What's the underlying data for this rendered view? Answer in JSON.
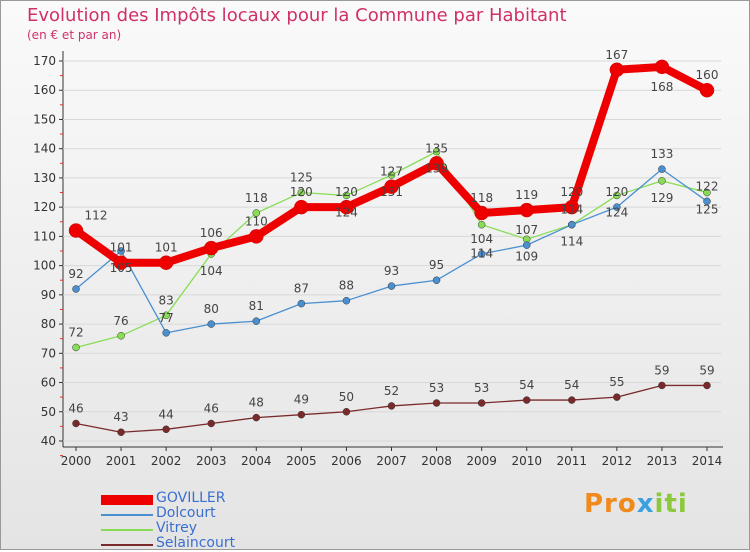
{
  "title": "Evolution des Impôts locaux pour la Commune par Habitant",
  "subtitle": "(en € et par an)",
  "logo": "Proxiti",
  "chart_data": {
    "type": "line",
    "title": "Evolution des Impôts locaux pour la Commune par Habitant",
    "ylabel": "(en € et par an)",
    "x": [
      2000,
      2001,
      2002,
      2003,
      2004,
      2005,
      2006,
      2007,
      2008,
      2009,
      2010,
      2011,
      2012,
      2013,
      2014
    ],
    "ylim": [
      40,
      170
    ],
    "yticks": [
      40,
      50,
      60,
      70,
      80,
      90,
      100,
      110,
      120,
      130,
      140,
      150,
      160,
      170
    ],
    "legend_position": "bottom-left",
    "series": [
      {
        "name": "GOVILLER",
        "color": "#ee0000",
        "values": [
          112,
          101,
          101,
          106,
          110,
          120,
          120,
          127,
          135,
          118,
          119,
          120,
          167,
          168,
          160
        ]
      },
      {
        "name": "Dolcourt",
        "color": "#4a90d0",
        "values": [
          92,
          105,
          77,
          80,
          81,
          87,
          88,
          93,
          95,
          104,
          107,
          114,
          120,
          133,
          122
        ]
      },
      {
        "name": "Vitrey",
        "color": "#88dd55",
        "values": [
          72,
          76,
          83,
          104,
          118,
          125,
          124,
          131,
          139,
          114,
          109,
          114,
          124,
          129,
          125
        ]
      },
      {
        "name": "Selaincourt",
        "color": "#7a2a2a",
        "values": [
          46,
          43,
          44,
          46,
          48,
          49,
          50,
          52,
          53,
          53,
          54,
          54,
          55,
          59,
          59
        ]
      }
    ]
  }
}
